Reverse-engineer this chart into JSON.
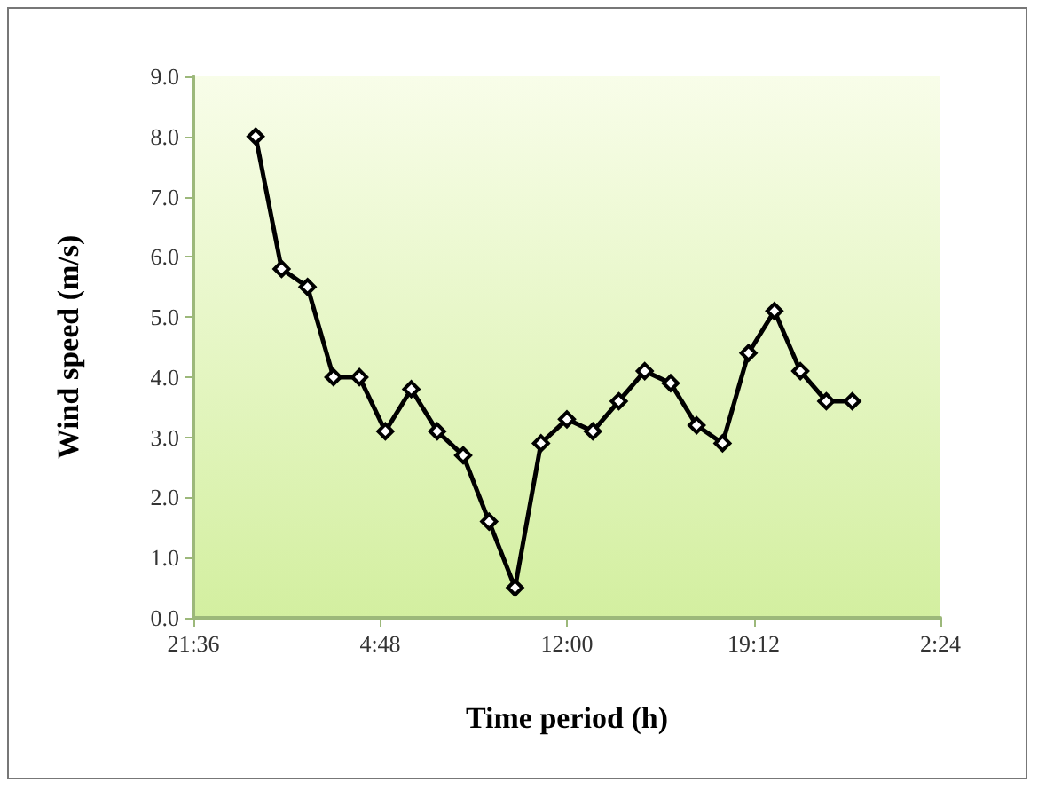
{
  "chart_data": {
    "type": "line",
    "xlabel": "Time period (h)",
    "ylabel": "Wind speed (m/s)",
    "x": [
      "--01-02T00:00",
      "--01-02T01:00",
      "--01-02T02:00",
      "--01-02T03:00",
      "--01-02T04:00",
      "--01-02T05:00",
      "--01-02T06:00",
      "--01-02T07:00",
      "--01-02T08:00",
      "--01-02T09:00",
      "--01-02T10:00",
      "--01-02T11:00",
      "--01-02T12:00",
      "--01-02T13:00",
      "--01-02T14:00",
      "--01-02T15:00",
      "--01-02T16:00",
      "--01-02T17:00",
      "--01-02T18:00",
      "--01-02T19:00",
      "--01-02T20:00",
      "--01-02T21:00",
      "--01-02T22:00",
      "--01-02T23:00"
    ],
    "series": [
      {
        "color": "#000000",
        "values": [
          8.0,
          5.8,
          5.5,
          4.0,
          4.0,
          3.1,
          3.8,
          3.1,
          2.7,
          1.6,
          0.5,
          2.9,
          3.3,
          3.1,
          3.6,
          4.1,
          3.9,
          3.2,
          2.9,
          4.4,
          5.1,
          4.1,
          3.6,
          3.6
        ]
      }
    ],
    "xlim": [
      "--01-01T21:36",
      "--01-03T02:24"
    ],
    "xticks": [
      {
        "value": "--01-01T21:36",
        "label": "21:36"
      },
      {
        "value": "--01-02T04:48",
        "label": "4:48"
      },
      {
        "value": "--01-02T12:00",
        "label": "12:00"
      },
      {
        "value": "--01-02T19:12",
        "label": "19:12"
      },
      {
        "value": "--01-03T02:24",
        "label": "2:24"
      }
    ],
    "ylim": [
      0,
      9
    ],
    "yticks": [
      {
        "value": 0,
        "label": "0.0"
      },
      {
        "value": 1,
        "label": "1.0"
      },
      {
        "value": 2,
        "label": "2.0"
      },
      {
        "value": 3,
        "label": "3.0"
      },
      {
        "value": 4,
        "label": "4.0"
      },
      {
        "value": 5,
        "label": "5.0"
      },
      {
        "value": 6,
        "label": "6.0"
      },
      {
        "value": 7,
        "label": "7.0"
      },
      {
        "value": 8,
        "label": "8.0"
      },
      {
        "value": 9,
        "label": "9.0"
      }
    ],
    "grid": false,
    "marker": "diamond",
    "line_style": "solid"
  }
}
